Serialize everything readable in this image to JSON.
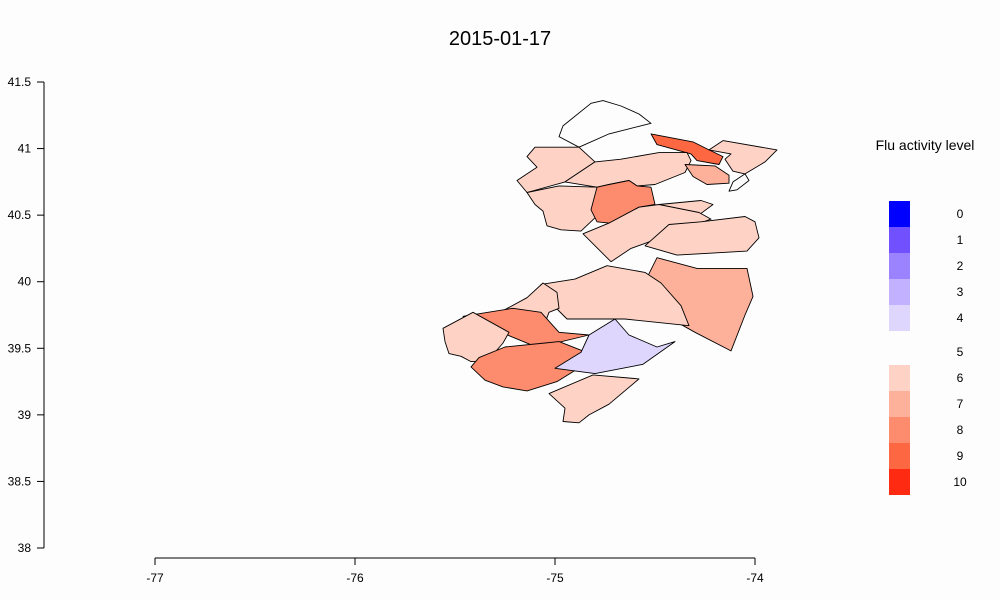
{
  "chart_data": {
    "type": "choropleth",
    "title": "2015-01-17",
    "x_ticks": [
      "-77",
      "-76",
      "-75",
      "-74"
    ],
    "y_ticks": [
      "41.5",
      "41",
      "40.5",
      "40",
      "39.5",
      "39",
      "38.5",
      "38"
    ],
    "xlim": [
      -77,
      -74
    ],
    "ylim": [
      38,
      41.5
    ],
    "legend": {
      "title": "Flu activity level",
      "levels": [
        {
          "label": "0",
          "color": "#0000ff"
        },
        {
          "label": "1",
          "color": "#7050ff"
        },
        {
          "label": "2",
          "color": "#9b82ff"
        },
        {
          "label": "3",
          "color": "#c1b1ff"
        },
        {
          "label": "4",
          "color": "#dfd6fe"
        },
        {
          "label": "5",
          "color": "#fdfdfd"
        },
        {
          "label": "6",
          "color": "#fed3c6"
        },
        {
          "label": "7",
          "color": "#fdb09a"
        },
        {
          "label": "8",
          "color": "#fd8b6d"
        },
        {
          "label": "9",
          "color": "#fd6742"
        },
        {
          "label": "10",
          "color": "#ff2a12"
        }
      ]
    },
    "regions": [
      {
        "level": 5,
        "points": [
          [
            -74.76,
            41.36
          ],
          [
            -74.67,
            41.32
          ],
          [
            -74.58,
            41.26
          ],
          [
            -74.52,
            41.19
          ],
          [
            -74.73,
            41.11
          ],
          [
            -74.88,
            41.01
          ],
          [
            -74.98,
            41.09
          ],
          [
            -74.96,
            41.17
          ],
          [
            -74.82,
            41.34
          ]
        ]
      },
      {
        "level": 9,
        "points": [
          [
            -74.52,
            41.11
          ],
          [
            -74.31,
            41.05
          ],
          [
            -74.23,
            40.99
          ],
          [
            -74.16,
            40.94
          ],
          [
            -74.18,
            40.88
          ],
          [
            -74.29,
            40.91
          ],
          [
            -74.32,
            40.96
          ],
          [
            -74.49,
            41.03
          ],
          [
            -74.52,
            41.11
          ]
        ]
      },
      {
        "level": 6,
        "points": [
          [
            -74.16,
            41.06
          ],
          [
            -73.89,
            40.99
          ],
          [
            -73.95,
            40.9
          ],
          [
            -74.05,
            40.81
          ],
          [
            -74.11,
            40.83
          ],
          [
            -74.15,
            40.92
          ],
          [
            -74.12,
            40.96
          ],
          [
            -74.23,
            40.99
          ]
        ]
      },
      {
        "level": 6,
        "points": [
          [
            -74.88,
            41.01
          ],
          [
            -75.1,
            41.01
          ],
          [
            -75.14,
            40.94
          ],
          [
            -75.09,
            40.86
          ],
          [
            -75.19,
            40.76
          ],
          [
            -75.14,
            40.67
          ],
          [
            -74.95,
            40.75
          ],
          [
            -74.8,
            40.9
          ]
        ]
      },
      {
        "level": 6,
        "points": [
          [
            -74.8,
            40.9
          ],
          [
            -74.67,
            40.92
          ],
          [
            -74.48,
            40.97
          ],
          [
            -74.34,
            40.97
          ],
          [
            -74.32,
            40.91
          ],
          [
            -74.35,
            40.82
          ],
          [
            -74.5,
            40.73
          ],
          [
            -74.59,
            40.72
          ],
          [
            -74.63,
            40.76
          ],
          [
            -74.73,
            40.73
          ],
          [
            -74.79,
            40.71
          ],
          [
            -74.95,
            40.75
          ]
        ]
      },
      {
        "level": 7,
        "points": [
          [
            -74.35,
            40.88
          ],
          [
            -74.31,
            40.79
          ],
          [
            -74.24,
            40.73
          ],
          [
            -74.13,
            40.74
          ],
          [
            -74.13,
            40.8
          ],
          [
            -74.2,
            40.87
          ]
        ]
      },
      {
        "level": 5,
        "points": [
          [
            -74.05,
            40.81
          ],
          [
            -74.11,
            40.75
          ],
          [
            -74.13,
            40.68
          ],
          [
            -74.09,
            40.69
          ],
          [
            -74.03,
            40.76
          ]
        ]
      },
      {
        "level": 6,
        "points": [
          [
            -75.14,
            40.67
          ],
          [
            -74.98,
            40.72
          ],
          [
            -74.79,
            40.71
          ],
          [
            -74.73,
            40.58
          ],
          [
            -74.8,
            40.48
          ],
          [
            -74.87,
            40.38
          ],
          [
            -74.97,
            40.39
          ],
          [
            -75.04,
            40.42
          ],
          [
            -75.06,
            40.53
          ],
          [
            -75.1,
            40.58
          ]
        ]
      },
      {
        "level": 8,
        "points": [
          [
            -74.73,
            40.73
          ],
          [
            -74.63,
            40.76
          ],
          [
            -74.59,
            40.72
          ],
          [
            -74.52,
            40.71
          ],
          [
            -74.5,
            40.58
          ],
          [
            -74.58,
            40.56
          ],
          [
            -74.73,
            40.44
          ],
          [
            -74.79,
            40.45
          ],
          [
            -74.82,
            40.54
          ],
          [
            -74.79,
            40.71
          ]
        ]
      },
      {
        "level": 6,
        "points": [
          [
            -74.48,
            40.58
          ],
          [
            -74.27,
            40.61
          ],
          [
            -74.21,
            40.58
          ],
          [
            -74.3,
            40.48
          ],
          [
            -74.45,
            40.44
          ],
          [
            -74.5,
            40.47
          ]
        ]
      },
      {
        "level": 6,
        "points": [
          [
            -74.73,
            40.44
          ],
          [
            -74.58,
            40.56
          ],
          [
            -74.48,
            40.58
          ],
          [
            -74.28,
            40.52
          ],
          [
            -74.22,
            40.47
          ],
          [
            -74.49,
            40.32
          ],
          [
            -74.62,
            40.25
          ],
          [
            -74.72,
            40.15
          ],
          [
            -74.86,
            40.36
          ]
        ]
      },
      {
        "level": 6,
        "points": [
          [
            -74.55,
            40.27
          ],
          [
            -74.39,
            40.2
          ],
          [
            -74.04,
            40.23
          ],
          [
            -73.98,
            40.33
          ],
          [
            -74.0,
            40.45
          ],
          [
            -74.05,
            40.49
          ],
          [
            -74.27,
            40.45
          ],
          [
            -74.43,
            40.43
          ]
        ]
      },
      {
        "level": 7,
        "points": [
          [
            -74.49,
            40.18
          ],
          [
            -74.29,
            40.1
          ],
          [
            -74.04,
            40.1
          ],
          [
            -74.01,
            39.89
          ],
          [
            -74.05,
            39.75
          ],
          [
            -74.12,
            39.48
          ],
          [
            -74.3,
            39.62
          ],
          [
            -74.43,
            39.73
          ],
          [
            -74.51,
            39.9
          ],
          [
            -74.54,
            40.03
          ]
        ]
      },
      {
        "level": 6,
        "points": [
          [
            -75.07,
            39.98
          ],
          [
            -74.9,
            40.02
          ],
          [
            -74.74,
            40.12
          ],
          [
            -74.55,
            40.07
          ],
          [
            -74.47,
            39.99
          ],
          [
            -74.37,
            39.82
          ],
          [
            -74.33,
            39.67
          ],
          [
            -74.65,
            39.72
          ],
          [
            -74.77,
            39.72
          ],
          [
            -74.94,
            39.72
          ],
          [
            -75.06,
            39.9
          ]
        ]
      },
      {
        "level": 6,
        "points": [
          [
            -75.06,
            39.99
          ],
          [
            -74.99,
            39.92
          ],
          [
            -74.98,
            39.8
          ],
          [
            -75.03,
            39.77
          ],
          [
            -75.05,
            39.69
          ],
          [
            -75.22,
            39.62
          ],
          [
            -75.3,
            39.75
          ],
          [
            -75.14,
            39.88
          ]
        ]
      },
      {
        "level": 8,
        "points": [
          [
            -75.46,
            39.74
          ],
          [
            -75.21,
            39.8
          ],
          [
            -75.07,
            39.77
          ],
          [
            -74.98,
            39.62
          ],
          [
            -74.83,
            39.6
          ],
          [
            -75.05,
            39.52
          ],
          [
            -75.11,
            39.52
          ],
          [
            -75.27,
            39.62
          ],
          [
            -75.36,
            39.71
          ]
        ]
      },
      {
        "level": 6,
        "points": [
          [
            -75.41,
            39.77
          ],
          [
            -75.56,
            39.65
          ],
          [
            -75.55,
            39.55
          ],
          [
            -75.53,
            39.46
          ],
          [
            -75.47,
            39.44
          ],
          [
            -75.42,
            39.4
          ],
          [
            -75.34,
            39.4
          ],
          [
            -75.26,
            39.54
          ],
          [
            -75.23,
            39.62
          ]
        ]
      },
      {
        "level": 8,
        "points": [
          [
            -74.98,
            39.55
          ],
          [
            -74.81,
            39.45
          ],
          [
            -74.85,
            39.38
          ],
          [
            -74.99,
            39.25
          ],
          [
            -75.14,
            39.18
          ],
          [
            -75.26,
            39.21
          ],
          [
            -75.35,
            39.26
          ],
          [
            -75.42,
            39.36
          ],
          [
            -75.38,
            39.43
          ],
          [
            -75.25,
            39.51
          ],
          [
            -75.05,
            39.54
          ]
        ]
      },
      {
        "level": 4,
        "points": [
          [
            -74.7,
            39.72
          ],
          [
            -74.63,
            39.6
          ],
          [
            -74.49,
            39.51
          ],
          [
            -74.4,
            39.55
          ],
          [
            -74.56,
            39.38
          ],
          [
            -74.8,
            39.31
          ],
          [
            -75.0,
            39.35
          ],
          [
            -74.87,
            39.47
          ],
          [
            -74.83,
            39.6
          ]
        ]
      },
      {
        "level": 6,
        "points": [
          [
            -74.81,
            39.3
          ],
          [
            -74.58,
            39.27
          ],
          [
            -74.73,
            39.08
          ],
          [
            -74.83,
            39.0
          ],
          [
            -74.88,
            38.94
          ],
          [
            -74.96,
            38.95
          ],
          [
            -74.95,
            39.05
          ],
          [
            -75.03,
            39.16
          ]
        ]
      }
    ]
  }
}
